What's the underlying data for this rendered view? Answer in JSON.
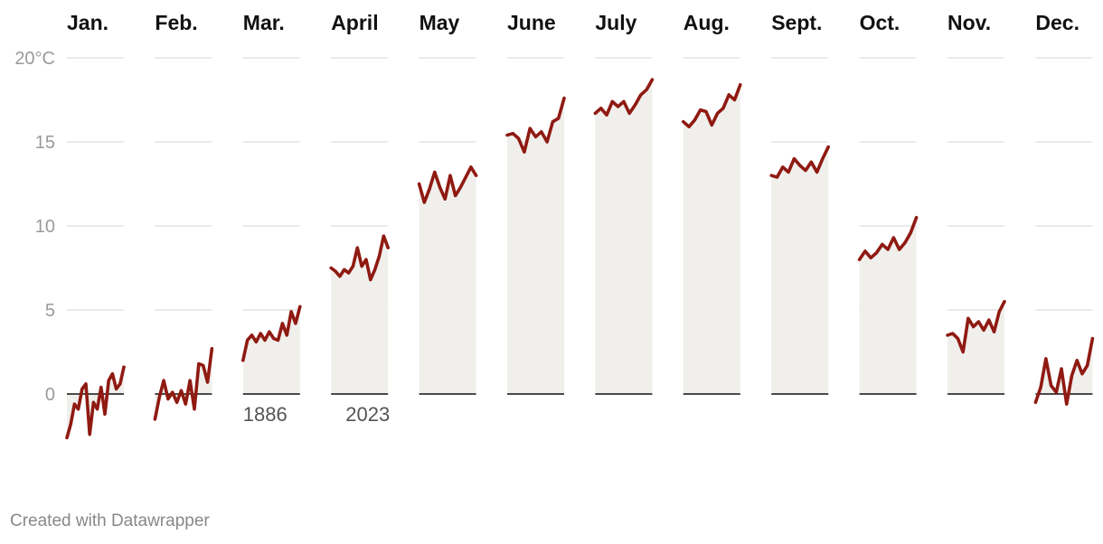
{
  "chart_data": {
    "type": "area",
    "layout": "small-multiples",
    "unit_label": "20°C",
    "y_ticks": [
      0,
      5,
      10,
      15,
      20
    ],
    "ylim": [
      -3,
      20
    ],
    "x_start_label": "1886",
    "x_end_label": "2023",
    "colors": {
      "line": "#8f1a12",
      "area": "#f0efec",
      "grid": "#dddddd",
      "baseline": "#111111"
    },
    "panels": [
      {
        "month": "Jan.",
        "values": [
          -2.6,
          -1.8,
          -0.6,
          -0.9,
          0.3,
          0.6,
          -2.4,
          -0.5,
          -0.9,
          0.4,
          -1.2,
          0.8,
          1.2,
          0.3,
          0.6,
          1.6
        ]
      },
      {
        "month": "Feb.",
        "values": [
          -1.5,
          -0.2,
          0.8,
          -0.3,
          0.1,
          -0.5,
          0.2,
          -0.6,
          0.8,
          -0.9,
          1.8,
          1.7,
          0.7,
          2.7
        ]
      },
      {
        "month": "Mar.",
        "values": [
          2.0,
          3.2,
          3.5,
          3.1,
          3.6,
          3.2,
          3.7,
          3.3,
          3.2,
          4.2,
          3.5,
          4.9,
          4.2,
          5.2
        ]
      },
      {
        "month": "April",
        "values": [
          7.5,
          7.3,
          7.0,
          7.4,
          7.2,
          7.6,
          8.7,
          7.6,
          8.0,
          6.8,
          7.4,
          8.2,
          9.4,
          8.7
        ]
      },
      {
        "month": "May",
        "values": [
          12.5,
          11.4,
          12.2,
          13.2,
          12.3,
          11.6,
          13.0,
          11.8,
          12.3,
          12.9,
          13.5,
          13.0
        ]
      },
      {
        "month": "June",
        "values": [
          15.4,
          15.5,
          15.2,
          14.4,
          15.8,
          15.3,
          15.6,
          15.0,
          16.2,
          16.4,
          17.6
        ]
      },
      {
        "month": "July",
        "values": [
          16.7,
          17.0,
          16.6,
          17.4,
          17.1,
          17.4,
          16.7,
          17.2,
          17.8,
          18.1,
          18.7
        ]
      },
      {
        "month": "Aug.",
        "values": [
          16.2,
          15.9,
          16.3,
          16.9,
          16.8,
          16.0,
          16.7,
          17.0,
          17.8,
          17.5,
          18.4
        ]
      },
      {
        "month": "Sept.",
        "values": [
          13.0,
          12.9,
          13.5,
          13.2,
          14.0,
          13.6,
          13.3,
          13.8,
          13.2,
          14.0,
          14.7
        ]
      },
      {
        "month": "Oct.",
        "values": [
          8.0,
          8.5,
          8.1,
          8.4,
          8.9,
          8.6,
          9.3,
          8.6,
          9.0,
          9.6,
          10.5
        ]
      },
      {
        "month": "Nov.",
        "values": [
          3.5,
          3.6,
          3.3,
          2.5,
          4.5,
          4.0,
          4.3,
          3.8,
          4.4,
          3.7,
          4.9,
          5.5
        ]
      },
      {
        "month": "Dec.",
        "values": [
          -0.5,
          0.4,
          2.1,
          0.5,
          0.1,
          1.5,
          -0.6,
          1.1,
          2.0,
          1.2,
          1.7,
          3.3
        ]
      }
    ]
  },
  "footer": {
    "credit": "Created with Datawrapper"
  }
}
